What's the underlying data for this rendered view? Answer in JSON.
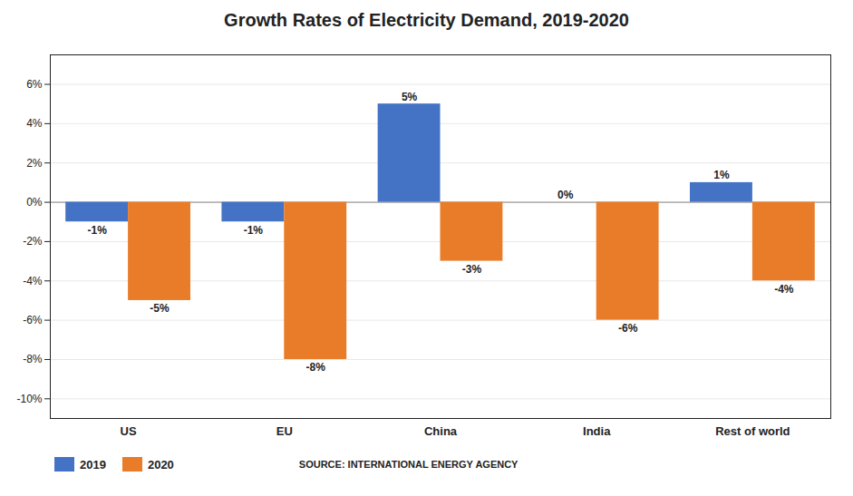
{
  "chart_data": {
    "type": "bar",
    "title": "Growth Rates of Electricity Demand, 2019-2020",
    "categories": [
      "US",
      "EU",
      "China",
      "India",
      "Rest of world"
    ],
    "series": [
      {
        "name": "2019",
        "color": "#4472C4",
        "values": [
          -1,
          -1,
          5,
          0,
          1
        ],
        "value_labels": [
          "-1%",
          "-1%",
          "5%",
          "0%",
          "1%"
        ]
      },
      {
        "name": "2020",
        "color": "#E97C28",
        "values": [
          -5,
          -8,
          -3,
          -6,
          -4
        ],
        "value_labels": [
          "-5%",
          "-8%",
          "-3%",
          "-6%",
          "-4%"
        ]
      }
    ],
    "ylim": [
      -11,
      7.5
    ],
    "yticks": [
      {
        "value": -10,
        "label": "-10%"
      },
      {
        "value": -8,
        "label": "-8%"
      },
      {
        "value": -6,
        "label": "-6%"
      },
      {
        "value": -4,
        "label": "-4%"
      },
      {
        "value": -2,
        "label": "-2%"
      },
      {
        "value": 0,
        "label": "0%"
      },
      {
        "value": 2,
        "label": "2%"
      },
      {
        "value": 4,
        "label": "4%"
      },
      {
        "value": 6,
        "label": "6%"
      }
    ],
    "grid": true,
    "data_labels": true,
    "legend": "bottom",
    "annotation": "SOURCE: INTERNATIONAL ENERGY AGENCY"
  }
}
